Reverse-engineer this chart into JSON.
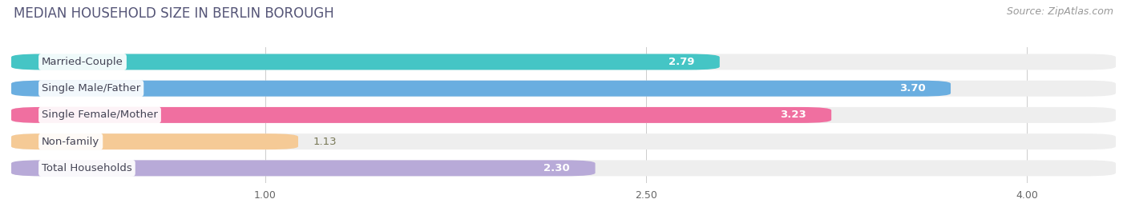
{
  "title": "MEDIAN HOUSEHOLD SIZE IN BERLIN BOROUGH",
  "source": "Source: ZipAtlas.com",
  "categories": [
    "Married-Couple",
    "Single Male/Father",
    "Single Female/Mother",
    "Non-family",
    "Total Households"
  ],
  "values": [
    2.79,
    3.7,
    3.23,
    1.13,
    2.3
  ],
  "bar_colors": [
    "#45c5c5",
    "#6aaee0",
    "#f06fa0",
    "#f5ca96",
    "#b8aad8"
  ],
  "bar_bg_color": "#eeeeee",
  "xlim_data": [
    0,
    4.35
  ],
  "xticks": [
    1.0,
    2.5,
    4.0
  ],
  "value_label_color_inside": [
    "#ffffff",
    "#ffffff",
    "#ffffff",
    "#888866",
    "#555555"
  ],
  "value_label_outside": [
    false,
    false,
    false,
    true,
    false
  ],
  "title_fontsize": 12,
  "source_fontsize": 9,
  "bar_label_fontsize": 9.5,
  "value_label_fontsize": 9.5,
  "tick_fontsize": 9,
  "background_color": "#ffffff",
  "title_color": "#555577"
}
